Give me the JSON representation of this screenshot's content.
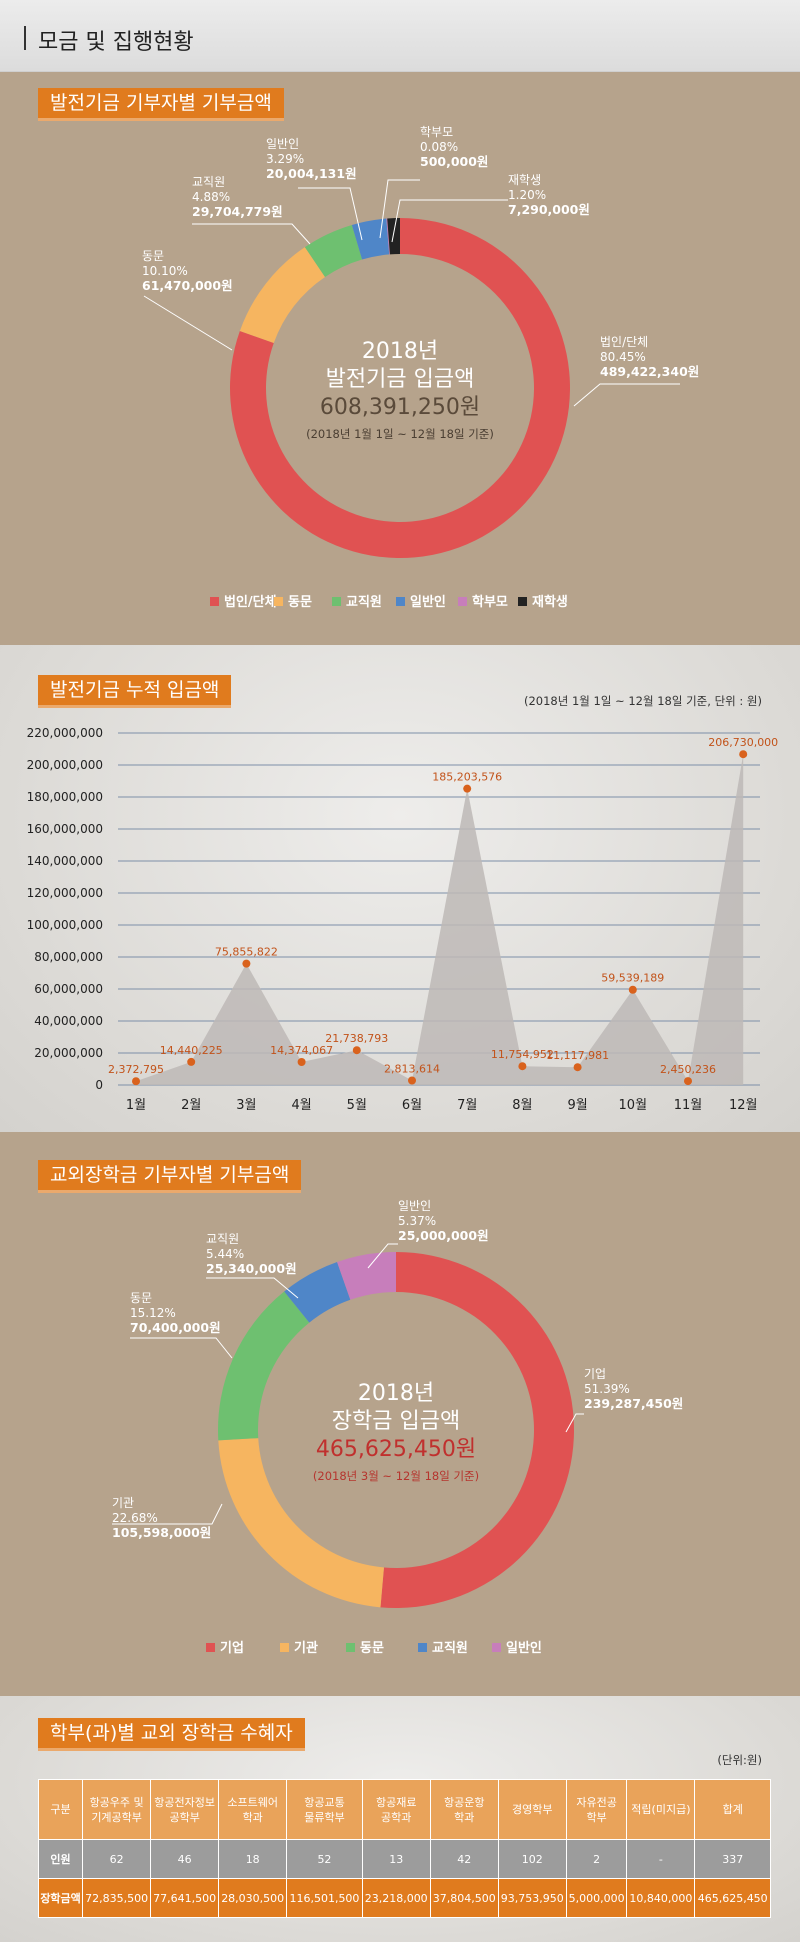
{
  "header": {
    "title": "모금 및 집행현황"
  },
  "colors": {
    "accent": "#e07b1e",
    "red": "#e05252",
    "orange": "#f6b560",
    "green": "#6ec070",
    "blue": "#4f86c8",
    "pink": "#c77ebb",
    "black": "#222222"
  },
  "chart_data": [
    {
      "type": "pie",
      "title": "발전기금 기부자별 기부금액",
      "center": {
        "year": "2018년",
        "label": "발전기금 입금액",
        "amount": "608,391,250원",
        "period": "(2018년 1월 1일 ~ 12월 18일 기준)"
      },
      "slices": [
        {
          "name": "법인/단체",
          "percent": "80.45%",
          "amount": "489,422,340원",
          "value": 489422340,
          "color": "#e05252"
        },
        {
          "name": "동문",
          "percent": "10.10%",
          "amount": "61,470,000원",
          "value": 61470000,
          "color": "#f6b560"
        },
        {
          "name": "교직원",
          "percent": "4.88%",
          "amount": "29,704,779원",
          "value": 29704779,
          "color": "#6ec070"
        },
        {
          "name": "일반인",
          "percent": "3.29%",
          "amount": "20,004,131원",
          "value": 20004131,
          "color": "#4f86c8"
        },
        {
          "name": "학부모",
          "percent": "0.08%",
          "amount": "500,000원",
          "value": 500000,
          "color": "#c77ebb"
        },
        {
          "name": "재학생",
          "percent": "1.20%",
          "amount": "7,290,000원",
          "value": 7290000,
          "color": "#222222"
        }
      ],
      "legend": [
        "법인/단체",
        "동문",
        "교직원",
        "일반인",
        "학부모",
        "재학생"
      ]
    },
    {
      "type": "area",
      "title": "발전기금 누적 입금액",
      "note": "(2018년 1월 1일 ~ 12월 18일 기준, 단위 : 원)",
      "categories": [
        "1월",
        "2월",
        "3월",
        "4월",
        "5월",
        "6월",
        "7월",
        "8월",
        "9월",
        "10월",
        "11월",
        "12월"
      ],
      "values": [
        2372795,
        14440225,
        75855822,
        14374067,
        21738793,
        2813614,
        185203576,
        11754952,
        11117981,
        59539189,
        2450236,
        206730000
      ],
      "value_labels": [
        "2,372,795",
        "14,440,225",
        "75,855,822",
        "14,374,067",
        "21,738,793",
        "2,813,614",
        "185,203,576",
        "11,754,952",
        "11,117,981",
        "59,539,189",
        "2,450,236",
        "206,730,000"
      ],
      "yticks": [
        "0",
        "20,000,000",
        "40,000,000",
        "60,000,000",
        "80,000,000",
        "100,000,000",
        "120,000,000",
        "140,000,000",
        "160,000,000",
        "180,000,000",
        "200,000,000",
        "220,000,000"
      ],
      "ylim": [
        0,
        220000000
      ],
      "grid": true
    },
    {
      "type": "pie",
      "title": "교외장학금 기부자별 기부금액",
      "center": {
        "year": "2018년",
        "label": "장학금 입금액",
        "amount": "465,625,450원",
        "period": "(2018년 3월 ~ 12월 18일 기준)"
      },
      "slices": [
        {
          "name": "기업",
          "percent": "51.39%",
          "amount": "239,287,450원",
          "value": 239287450,
          "color": "#e05252"
        },
        {
          "name": "기관",
          "percent": "22.68%",
          "amount": "105,598,000원",
          "value": 105598000,
          "color": "#f6b560"
        },
        {
          "name": "동문",
          "percent": "15.12%",
          "amount": "70,400,000원",
          "value": 70400000,
          "color": "#6ec070"
        },
        {
          "name": "교직원",
          "percent": "5.44%",
          "amount": "25,340,000원",
          "value": 25340000,
          "color": "#4f86c8"
        },
        {
          "name": "일반인",
          "percent": "5.37%",
          "amount": "25,000,000원",
          "value": 25000000,
          "color": "#c77ebb"
        }
      ],
      "legend": [
        "기업",
        "기관",
        "동문",
        "교직원",
        "일반인"
      ]
    },
    {
      "type": "table",
      "title": "학부(과)별 교외 장학금 수혜자",
      "unit": "(단위:원)",
      "headers": [
        "구분",
        "항공우주 및\n기계공학부",
        "항공전자정보\n공학부",
        "소프트웨어\n학과",
        "항공교통\n물류학부",
        "항공재료\n공학과",
        "항공운항\n학과",
        "경영학부",
        "자유전공\n학부",
        "적립(미지급)",
        "합계"
      ],
      "rows": [
        {
          "label": "인원",
          "cells": [
            "62",
            "46",
            "18",
            "52",
            "13",
            "42",
            "102",
            "2",
            "-",
            "337"
          ]
        },
        {
          "label": "장학금액",
          "cells": [
            "72,835,500",
            "77,641,500",
            "28,030,500",
            "116,501,500",
            "23,218,000",
            "37,804,500",
            "93,753,950",
            "5,000,000",
            "10,840,000",
            "465,625,450"
          ]
        }
      ]
    }
  ]
}
